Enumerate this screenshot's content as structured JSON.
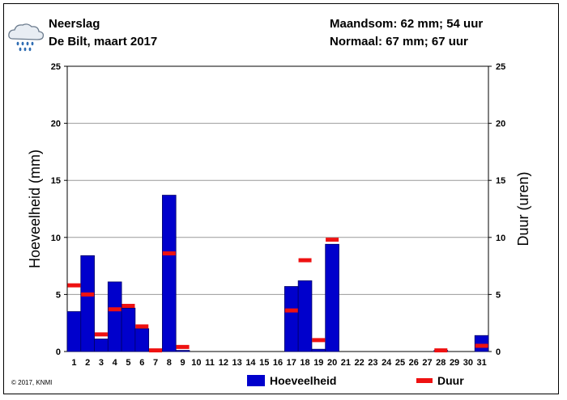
{
  "header": {
    "title": "Neerslag",
    "subtitle": "De Bilt, maart 2017",
    "monthly_sum": "Maandsom: 62 mm; 54 uur",
    "normal": "Normaal: 67 mm; 67 uur",
    "weather_icon": "rain-cloud-icon"
  },
  "copyright": "© 2017, KNMI",
  "legend": {
    "amount_label": "Hoeveelheid",
    "duration_label": "Duur"
  },
  "colors": {
    "bar": "#0000cc",
    "bar_edge": "#000066",
    "duration": "#ee1111",
    "grid": "#999999"
  },
  "chart_data": {
    "type": "bar",
    "ylabel": "Hoeveelheid (mm)",
    "y2label": "Duur (uren)",
    "ylim": [
      0,
      25
    ],
    "y2lim": [
      0,
      25
    ],
    "yticks": [
      0,
      5,
      10,
      15,
      20,
      25
    ],
    "grid": true,
    "legend_position": "bottom",
    "categories": [
      "1",
      "2",
      "3",
      "4",
      "5",
      "6",
      "7",
      "8",
      "9",
      "10",
      "11",
      "12",
      "13",
      "14",
      "15",
      "16",
      "17",
      "18",
      "19",
      "20",
      "21",
      "22",
      "23",
      "24",
      "25",
      "26",
      "27",
      "28",
      "29",
      "30",
      "31"
    ],
    "series": [
      {
        "name": "Hoeveelheid",
        "kind": "bar",
        "values": [
          3.5,
          8.4,
          1.1,
          6.1,
          3.8,
          2.0,
          0.1,
          13.7,
          0.1,
          0,
          0,
          0,
          0,
          0,
          0,
          0,
          5.7,
          6.2,
          0.2,
          9.4,
          0,
          0,
          0,
          0,
          0,
          0,
          0,
          0.1,
          0,
          0,
          1.4
        ]
      },
      {
        "name": "Duur",
        "kind": "marker",
        "values": [
          5.8,
          5.0,
          1.5,
          3.7,
          4.0,
          2.2,
          0.1,
          8.6,
          0.4,
          null,
          null,
          null,
          null,
          null,
          null,
          null,
          3.6,
          8.0,
          1.0,
          9.8,
          null,
          null,
          null,
          null,
          null,
          null,
          null,
          0.1,
          null,
          null,
          0.5
        ]
      }
    ]
  }
}
